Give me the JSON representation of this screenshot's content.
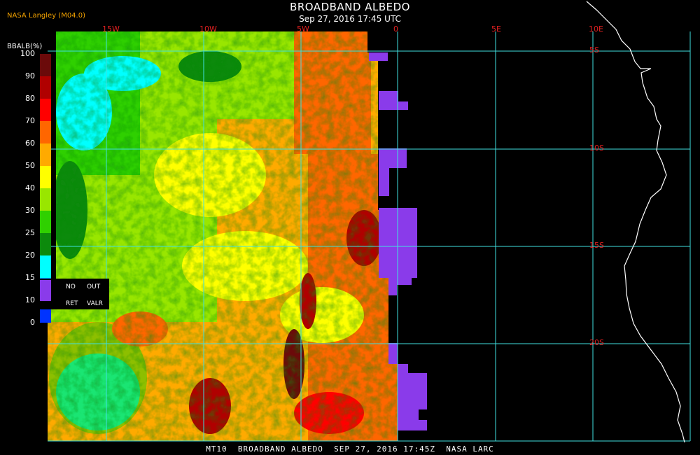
{
  "header": {
    "title": "BROADBAND ALBEDO",
    "datetime": "Sep 27, 2016 17:45 UTC",
    "source": "NASA Langley (M04.0)"
  },
  "footer": {
    "text": "MT10  BROADBAND ALBEDO  SEP 27, 2016 17:45Z  NASA LARC"
  },
  "legend": {
    "title": "BBALB(%)",
    "ticks": [
      "100",
      "90",
      "80",
      "70",
      "60",
      "50",
      "40",
      "30",
      "25",
      "20",
      "15",
      "10",
      "0"
    ],
    "colors": [
      "#6b0a0a",
      "#b00000",
      "#ff0000",
      "#ff6600",
      "#ffaa00",
      "#ffff00",
      "#99e600",
      "#2fd000",
      "#0c8a0c",
      "#00ffff",
      "#0099ff",
      "#0033ff",
      "#8a3bea"
    ],
    "no_ret": [
      "NO",
      "RET"
    ],
    "out_valr": [
      "OUT",
      "VALR"
    ]
  },
  "map": {
    "longitude_labels": [
      "15W",
      "10W",
      "5W",
      "0",
      "5E",
      "10E"
    ],
    "latitude_labels": [
      "5S",
      "10S",
      "15S",
      "20S"
    ],
    "grid_color": "#40e0e0",
    "coast_color": "#ffffff",
    "label_color": "#e02020"
  }
}
